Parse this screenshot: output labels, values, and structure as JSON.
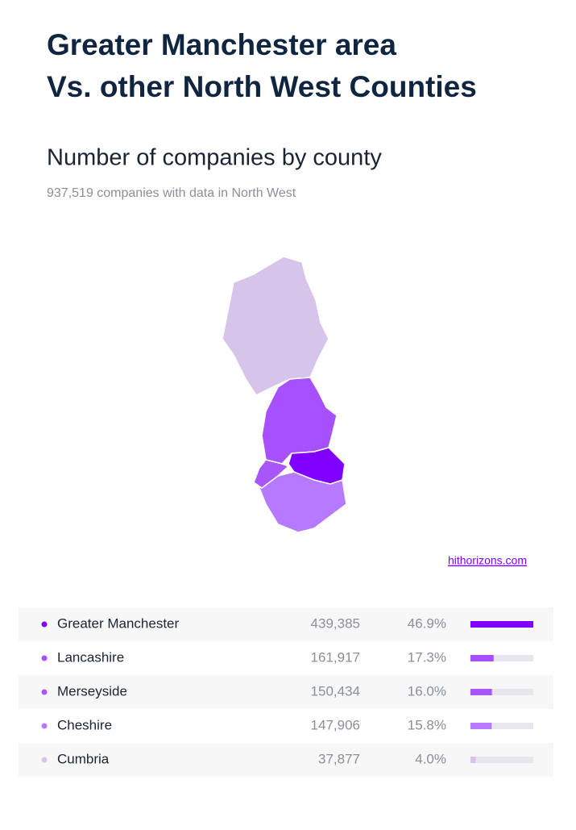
{
  "header": {
    "title_lines": [
      "Greater Manchester area",
      "Vs. other North West Counties"
    ],
    "subtitle": "Number of companies by county",
    "note": "937,519 companies with data in North West"
  },
  "source": "hithorizons.com",
  "rows": [
    {
      "name": "Greater Manchester",
      "companies": {
        "value": 439385,
        "label": "439,385"
      },
      "share": {
        "value": 46.9,
        "label": "46.9%"
      },
      "color": "#8000ff"
    },
    {
      "name": "Lancashire",
      "companies": {
        "value": 161917,
        "label": "161,917"
      },
      "share": {
        "value": 17.3,
        "label": "17.3%"
      },
      "color": "#a650ff"
    },
    {
      "name": "Merseyside",
      "companies": {
        "value": 150434,
        "label": "150,434"
      },
      "share": {
        "value": 16.0,
        "label": "16.0%"
      },
      "color": "#a855fc"
    },
    {
      "name": "Cheshire",
      "companies": {
        "value": 147906,
        "label": "147,906"
      },
      "share": {
        "value": 15.8,
        "label": "15.8%"
      },
      "color": "#b57aff"
    },
    {
      "name": "Cumbria",
      "companies": {
        "value": 37877,
        "label": "37,877"
      },
      "share": {
        "value": 4.0,
        "label": "4.0%"
      },
      "color": "#d6c4ea"
    }
  ]
}
